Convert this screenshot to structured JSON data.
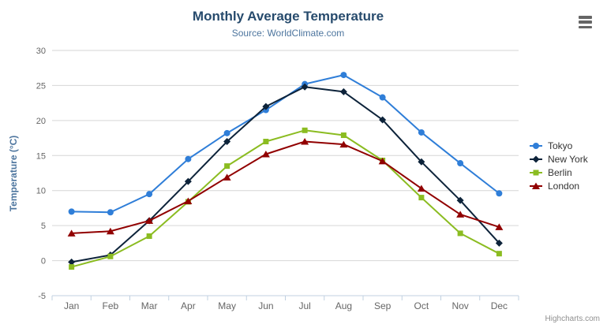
{
  "chart": {
    "title": "Monthly Average Temperature",
    "subtitle": "Source: WorldClimate.com",
    "credits": "Highcharts.com",
    "context_menu_icon": "hamburger-icon"
  },
  "chart_data": {
    "type": "line",
    "categories": [
      "Jan",
      "Feb",
      "Mar",
      "Apr",
      "May",
      "Jun",
      "Jul",
      "Aug",
      "Sep",
      "Oct",
      "Nov",
      "Dec"
    ],
    "series": [
      {
        "name": "Tokyo",
        "color": "#2f7ed8",
        "marker": "circle",
        "values": [
          7.0,
          6.9,
          9.5,
          14.5,
          18.2,
          21.5,
          25.2,
          26.5,
          23.3,
          18.3,
          13.9,
          9.6
        ]
      },
      {
        "name": "New York",
        "color": "#0d233a",
        "marker": "diamond",
        "values": [
          -0.2,
          0.8,
          5.7,
          11.3,
          17.0,
          22.0,
          24.8,
          24.1,
          20.1,
          14.1,
          8.6,
          2.5
        ]
      },
      {
        "name": "Berlin",
        "color": "#8bbc21",
        "marker": "square",
        "values": [
          -0.9,
          0.6,
          3.5,
          8.4,
          13.5,
          17.0,
          18.6,
          17.9,
          14.3,
          9.0,
          3.9,
          1.0
        ]
      },
      {
        "name": "London",
        "color": "#910000",
        "marker": "triangle",
        "values": [
          3.9,
          4.2,
          5.7,
          8.5,
          11.9,
          15.2,
          17.0,
          16.6,
          14.2,
          10.3,
          6.6,
          4.8
        ]
      }
    ],
    "title": "Monthly Average Temperature",
    "subtitle": "Source: WorldClimate.com",
    "xlabel": "",
    "ylabel": "Temperature (°C)",
    "ylim": [
      -5,
      30
    ],
    "ytick_step": 5,
    "yticks": [
      -5,
      0,
      5,
      10,
      15,
      20,
      25,
      30
    ],
    "grid": true,
    "legend_position": "right"
  },
  "colors": {
    "title": "#274b6d",
    "subtitle": "#4d759e",
    "axis_title": "#4d759e",
    "axis_labels": "#666666",
    "axis_line": "#c0d0e0",
    "gridline": "#d6d6d6",
    "legend_text": "#333333",
    "credits": "#909090"
  }
}
